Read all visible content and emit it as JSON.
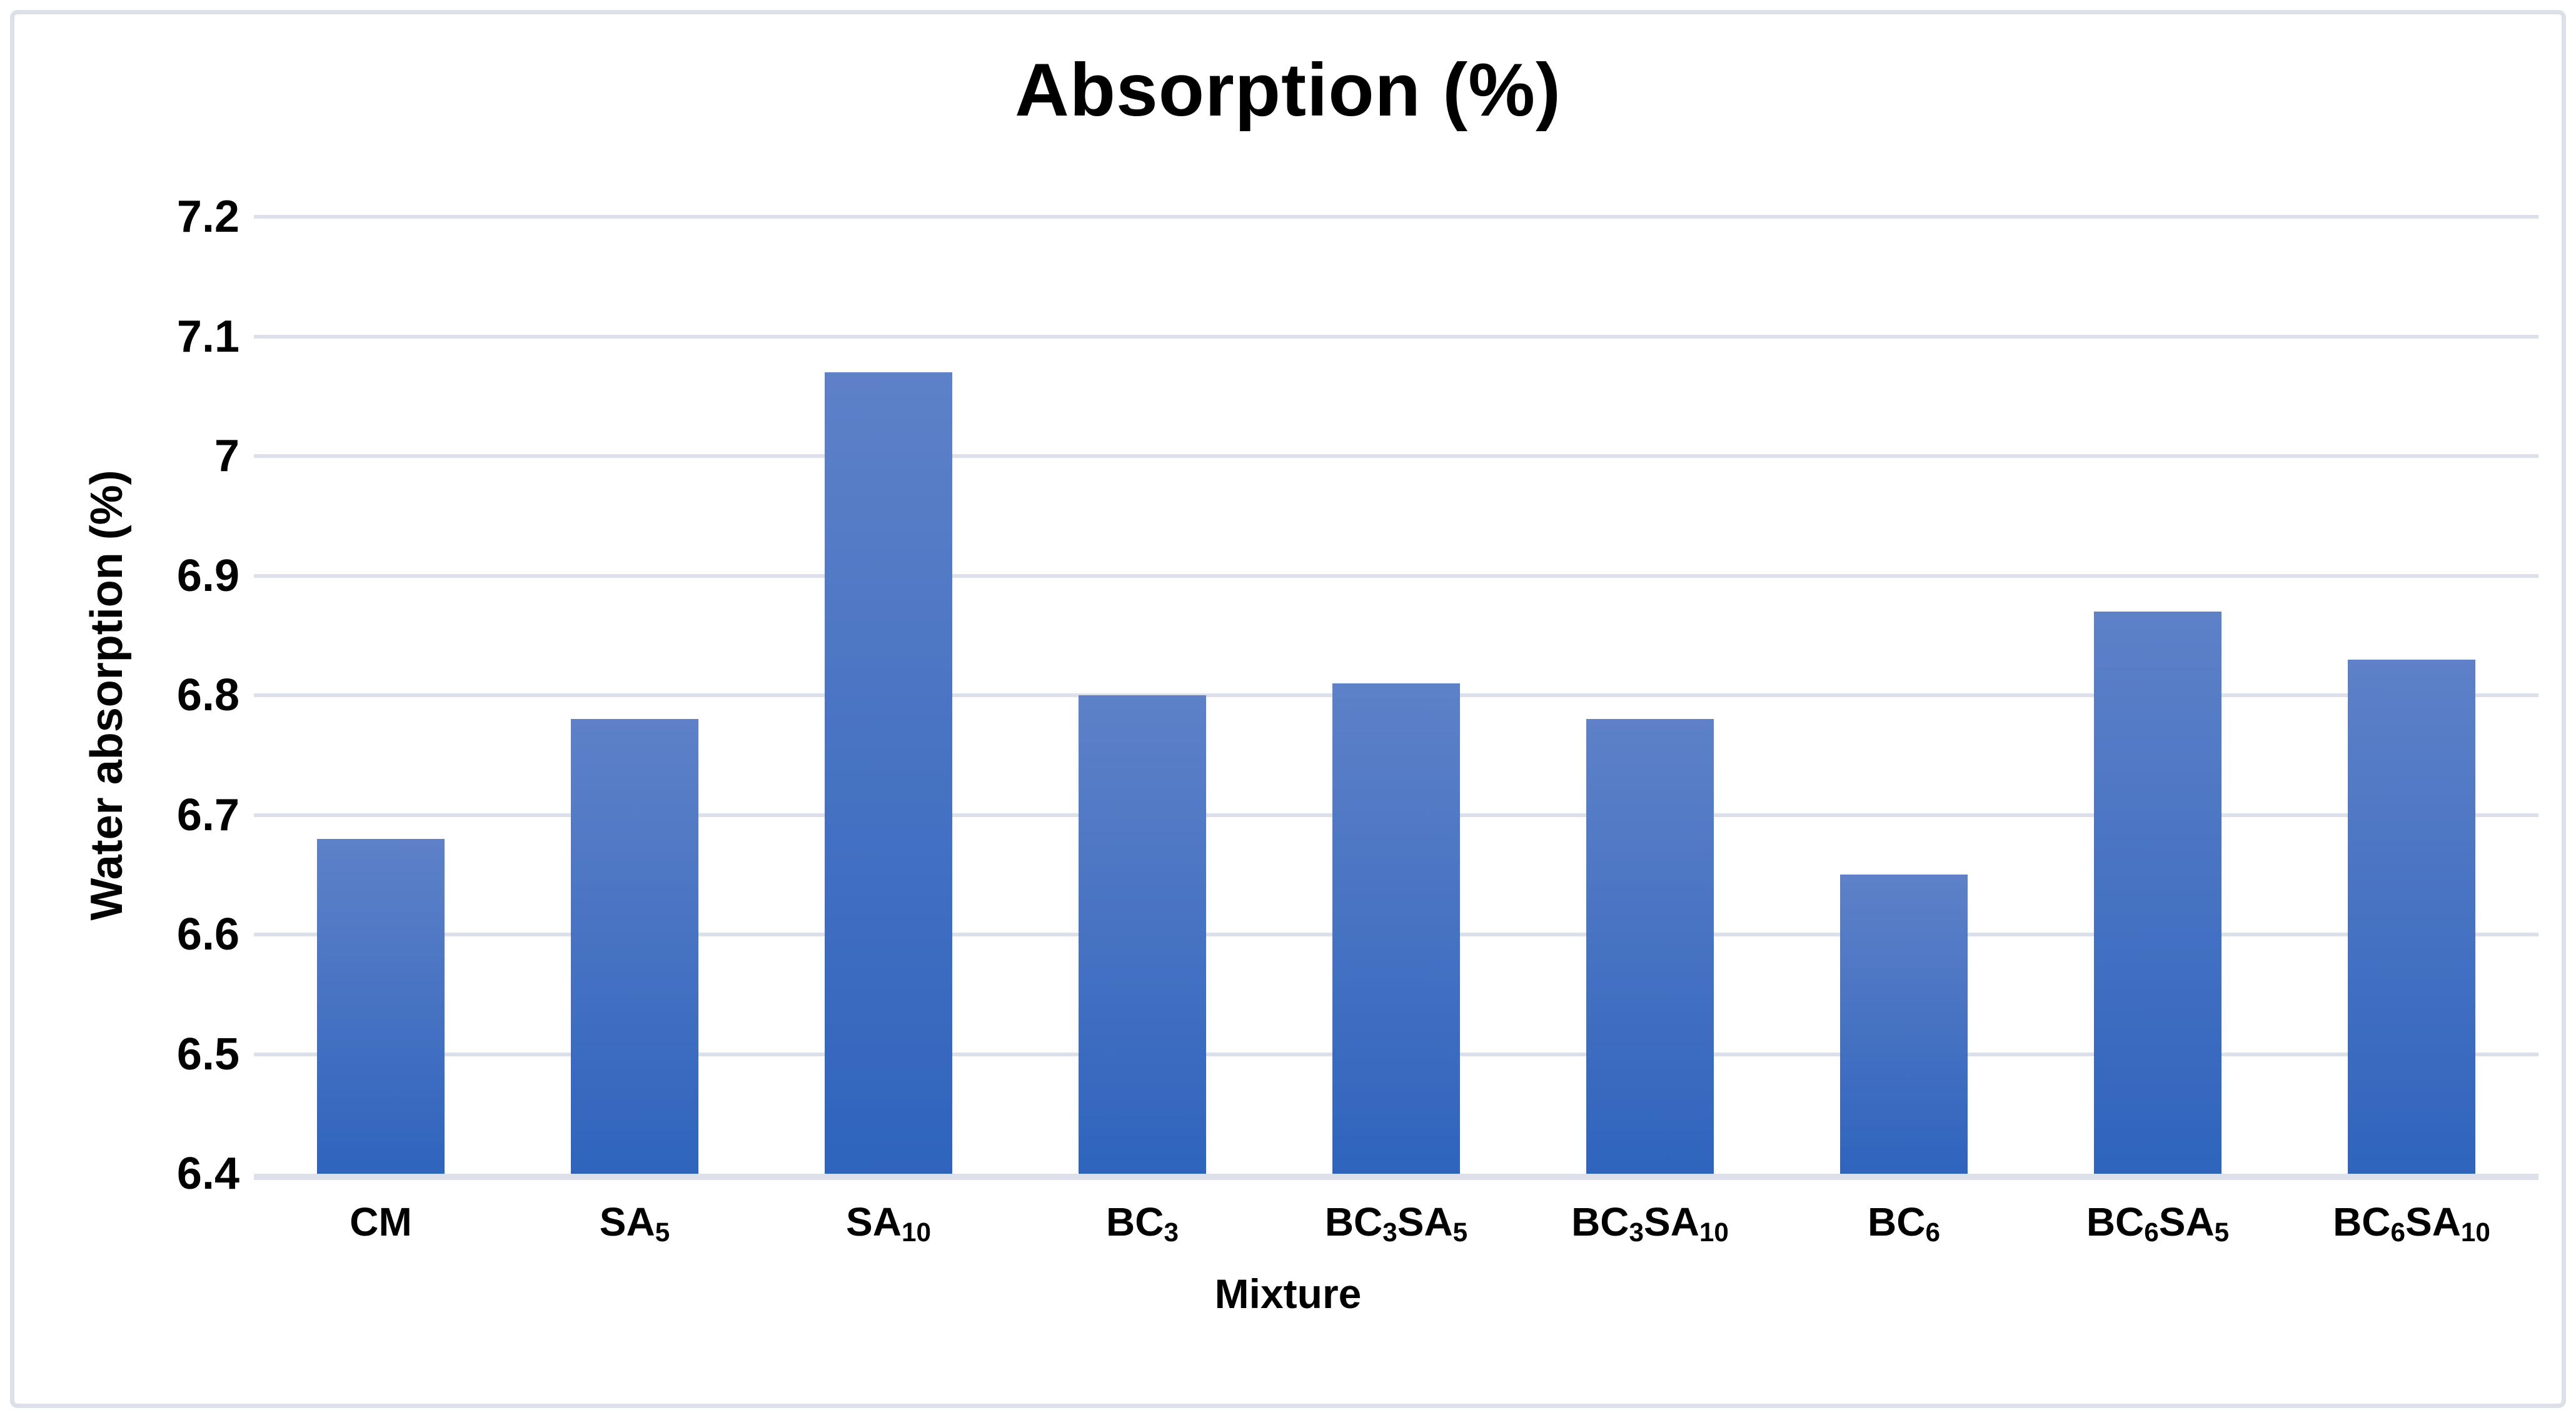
{
  "title": "Absorption (%)",
  "y_axis": {
    "title": "Water absorption (%)",
    "tick_labels": [
      "7.2",
      "7.1",
      "7",
      "6.9",
      "6.8",
      "6.7",
      "6.6",
      "6.5",
      "6.4"
    ]
  },
  "x_axis": {
    "title": "Mixture"
  },
  "colors": {
    "bar_gradient_top": "#5e81c8",
    "bar_gradient_bottom": "#2f64bd",
    "gridline": "#dbe0ea",
    "axis_line": "#dbe0ea",
    "figure_border": "#dce0e9",
    "text": "#000000",
    "background": "#ffffff"
  },
  "chart_data": {
    "type": "bar",
    "title": "Absorption (%)",
    "xlabel": "Mixture",
    "ylabel": "Water absorption (%)",
    "ylim": [
      6.4,
      7.2
    ],
    "ytick_step": 0.1,
    "grid": true,
    "legend": false,
    "categories": [
      "CM",
      "SA5",
      "SA10",
      "BC3",
      "BC3SA5",
      "BC3SA10",
      "BC6",
      "BC6SA5",
      "BC6SA10"
    ],
    "categories_rich": [
      [
        {
          "t": "CM"
        }
      ],
      [
        {
          "t": "SA"
        },
        {
          "t": "5",
          "sub": true
        }
      ],
      [
        {
          "t": "SA"
        },
        {
          "t": "10",
          "sub": true
        }
      ],
      [
        {
          "t": "BC"
        },
        {
          "t": "3",
          "sub": true
        }
      ],
      [
        {
          "t": "BC"
        },
        {
          "t": "3",
          "sub": true
        },
        {
          "t": "SA"
        },
        {
          "t": "5",
          "sub": true
        }
      ],
      [
        {
          "t": "BC"
        },
        {
          "t": "3",
          "sub": true
        },
        {
          "t": "SA"
        },
        {
          "t": "10",
          "sub": true
        }
      ],
      [
        {
          "t": "BC"
        },
        {
          "t": "6",
          "sub": true
        }
      ],
      [
        {
          "t": "BC"
        },
        {
          "t": "6",
          "sub": true
        },
        {
          "t": "SA"
        },
        {
          "t": "5",
          "sub": true
        }
      ],
      [
        {
          "t": "BC"
        },
        {
          "t": "6",
          "sub": true
        },
        {
          "t": "SA"
        },
        {
          "t": "10",
          "sub": true
        }
      ]
    ],
    "values": [
      6.68,
      6.78,
      7.07,
      6.8,
      6.81,
      6.78,
      6.65,
      6.87,
      6.83
    ]
  }
}
